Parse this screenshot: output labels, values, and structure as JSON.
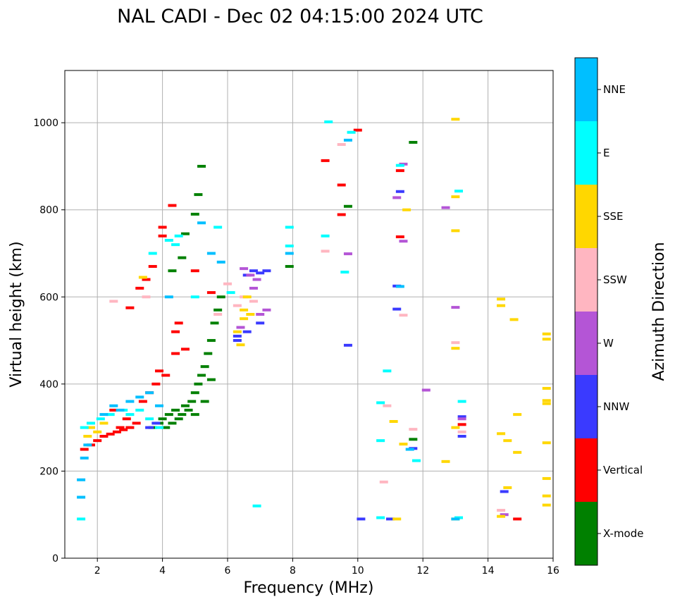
{
  "chart_data": {
    "type": "scatter",
    "title": "NAL CADI - Dec 02 04:15:00 2024 UTC",
    "xlabel": "Frequency (MHz)",
    "ylabel": "Virtual height (km)",
    "xlim": [
      1,
      16
    ],
    "ylim": [
      0,
      1120
    ],
    "xticks": [
      2,
      4,
      6,
      8,
      10,
      12,
      14,
      16
    ],
    "yticks": [
      0,
      200,
      400,
      600,
      800,
      1000
    ],
    "grid": true,
    "colorbar": {
      "label": "Azimuth Direction",
      "categories": [
        {
          "name": "X-mode",
          "color": "#008000"
        },
        {
          "name": "Vertical",
          "color": "#ff0000"
        },
        {
          "name": "NNW",
          "color": "#3a3aff"
        },
        {
          "name": "W",
          "color": "#b455d6"
        },
        {
          "name": "SSW",
          "color": "#ffb6c1"
        },
        {
          "name": "SSE",
          "color": "#ffd700"
        },
        {
          "name": "E",
          "color": "#00ffff"
        },
        {
          "name": "NNE",
          "color": "#00bfff"
        }
      ]
    },
    "series": [
      {
        "name": "X-mode",
        "points": [
          [
            4.1,
            300
          ],
          [
            4.3,
            310
          ],
          [
            4.5,
            320
          ],
          [
            4.6,
            330
          ],
          [
            4.8,
            340
          ],
          [
            4.9,
            360
          ],
          [
            5.0,
            380
          ],
          [
            5.1,
            400
          ],
          [
            5.2,
            420
          ],
          [
            4.2,
            330
          ],
          [
            4.4,
            340
          ],
          [
            4.7,
            350
          ],
          [
            5.3,
            440
          ],
          [
            5.4,
            470
          ],
          [
            5.5,
            500
          ],
          [
            5.6,
            540
          ],
          [
            5.7,
            570
          ],
          [
            5.8,
            600
          ],
          [
            4.3,
            660
          ],
          [
            4.6,
            690
          ],
          [
            4.7,
            745
          ],
          [
            5.0,
            790
          ],
          [
            5.1,
            835
          ],
          [
            5.2,
            900
          ],
          [
            3.7,
            300
          ],
          [
            3.9,
            310
          ],
          [
            4.0,
            320
          ],
          [
            5.0,
            330
          ],
          [
            5.3,
            360
          ],
          [
            11.7,
            955
          ],
          [
            9.7,
            808
          ],
          [
            11.7,
            273
          ],
          [
            7.9,
            670
          ],
          [
            5.5,
            410
          ]
        ]
      },
      {
        "name": "Vertical",
        "points": [
          [
            1.6,
            250
          ],
          [
            1.8,
            260
          ],
          [
            2.0,
            270
          ],
          [
            2.2,
            280
          ],
          [
            2.4,
            285
          ],
          [
            2.6,
            290
          ],
          [
            2.8,
            295
          ],
          [
            3.0,
            300
          ],
          [
            3.2,
            310
          ],
          [
            2.9,
            320
          ],
          [
            2.5,
            340
          ],
          [
            2.7,
            300
          ],
          [
            3.4,
            360
          ],
          [
            3.6,
            380
          ],
          [
            3.8,
            400
          ],
          [
            4.1,
            420
          ],
          [
            4.4,
            470
          ],
          [
            4.7,
            480
          ],
          [
            3.3,
            620
          ],
          [
            3.5,
            640
          ],
          [
            3.7,
            670
          ],
          [
            4.0,
            740
          ],
          [
            4.3,
            810
          ],
          [
            4.0,
            760
          ],
          [
            3.0,
            575
          ],
          [
            4.4,
            520
          ],
          [
            4.5,
            540
          ],
          [
            5.0,
            660
          ],
          [
            9.0,
            913
          ],
          [
            9.5,
            857
          ],
          [
            10.0,
            983
          ],
          [
            11.3,
            890
          ],
          [
            9.5,
            789
          ],
          [
            13.2,
            307
          ],
          [
            14.9,
            90
          ],
          [
            11.3,
            738
          ],
          [
            5.5,
            610
          ],
          [
            3.9,
            430
          ]
        ]
      },
      {
        "name": "NNW",
        "points": [
          [
            6.6,
            650
          ],
          [
            6.8,
            660
          ],
          [
            7.0,
            655
          ],
          [
            7.2,
            660
          ],
          [
            6.3,
            500
          ],
          [
            6.6,
            520
          ],
          [
            7.0,
            540
          ],
          [
            9.7,
            489
          ],
          [
            11.3,
            842
          ],
          [
            11.2,
            625
          ],
          [
            11.2,
            572
          ],
          [
            13.2,
            325
          ],
          [
            13.2,
            280
          ],
          [
            10.1,
            90
          ],
          [
            11.0,
            90
          ],
          [
            11.7,
            252
          ],
          [
            14.5,
            153
          ],
          [
            6.3,
            510
          ],
          [
            3.6,
            300
          ],
          [
            3.8,
            310
          ]
        ]
      },
      {
        "name": "W",
        "points": [
          [
            6.5,
            665
          ],
          [
            6.7,
            650
          ],
          [
            7.0,
            560
          ],
          [
            7.2,
            570
          ],
          [
            6.4,
            530
          ],
          [
            6.8,
            620
          ],
          [
            11.2,
            828
          ],
          [
            11.4,
            905
          ],
          [
            11.4,
            728
          ],
          [
            12.7,
            805
          ],
          [
            13.0,
            576
          ],
          [
            14.5,
            100
          ],
          [
            12.1,
            386
          ],
          [
            9.7,
            699
          ],
          [
            13.2,
            320
          ],
          [
            6.9,
            640
          ]
        ]
      },
      {
        "name": "SSW",
        "points": [
          [
            6.3,
            580
          ],
          [
            6.5,
            600
          ],
          [
            6.8,
            590
          ],
          [
            9.5,
            950
          ],
          [
            9.0,
            705
          ],
          [
            10.8,
            175
          ],
          [
            10.9,
            350
          ],
          [
            11.7,
            296
          ],
          [
            13.0,
            495
          ],
          [
            14.4,
            110
          ],
          [
            11.4,
            558
          ],
          [
            13.2,
            290
          ],
          [
            3.5,
            600
          ],
          [
            5.7,
            560
          ],
          [
            6.0,
            630
          ],
          [
            2.5,
            590
          ]
        ]
      },
      {
        "name": "SSE",
        "points": [
          [
            6.5,
            570
          ],
          [
            6.5,
            550
          ],
          [
            6.7,
            560
          ],
          [
            6.4,
            490
          ],
          [
            6.3,
            520
          ],
          [
            6.6,
            600
          ],
          [
            11.5,
            800
          ],
          [
            13.0,
            1008
          ],
          [
            13.0,
            830
          ],
          [
            13.0,
            752
          ],
          [
            14.4,
            595
          ],
          [
            14.4,
            580
          ],
          [
            14.8,
            548
          ],
          [
            15.8,
            515
          ],
          [
            15.8,
            503
          ],
          [
            15.8,
            390
          ],
          [
            15.8,
            362
          ],
          [
            15.8,
            355
          ],
          [
            14.9,
            330
          ],
          [
            13.0,
            482
          ],
          [
            13.0,
            300
          ],
          [
            11.1,
            314
          ],
          [
            11.4,
            262
          ],
          [
            12.7,
            222
          ],
          [
            14.4,
            286
          ],
          [
            14.6,
            270
          ],
          [
            14.9,
            243
          ],
          [
            15.8,
            265
          ],
          [
            15.8,
            183
          ],
          [
            14.6,
            162
          ],
          [
            15.8,
            143
          ],
          [
            15.8,
            122
          ],
          [
            14.4,
            96
          ],
          [
            13.0,
            90
          ],
          [
            11.2,
            90
          ],
          [
            1.7,
            280
          ],
          [
            1.8,
            300
          ],
          [
            2.0,
            290
          ],
          [
            3.4,
            645
          ],
          [
            2.2,
            310
          ]
        ]
      },
      {
        "name": "E",
        "points": [
          [
            1.5,
            90
          ],
          [
            1.6,
            300
          ],
          [
            1.8,
            310
          ],
          [
            2.1,
            320
          ],
          [
            2.4,
            330
          ],
          [
            2.8,
            340
          ],
          [
            3.0,
            330
          ],
          [
            3.3,
            340
          ],
          [
            3.6,
            320
          ],
          [
            3.9,
            300
          ],
          [
            9.1,
            1002
          ],
          [
            9.8,
            978
          ],
          [
            11.3,
            902
          ],
          [
            13.1,
            843
          ],
          [
            9.0,
            740
          ],
          [
            7.9,
            717
          ],
          [
            7.9,
            760
          ],
          [
            9.6,
            657
          ],
          [
            6.1,
            610
          ],
          [
            10.9,
            430
          ],
          [
            13.2,
            360
          ],
          [
            10.7,
            357
          ],
          [
            10.7,
            270
          ],
          [
            11.8,
            224
          ],
          [
            6.9,
            120
          ],
          [
            10.7,
            93
          ],
          [
            13.1,
            93
          ],
          [
            4.2,
            730
          ],
          [
            4.5,
            740
          ],
          [
            3.7,
            700
          ],
          [
            4.4,
            720
          ],
          [
            5.7,
            760
          ],
          [
            5.0,
            600
          ]
        ]
      },
      {
        "name": "NNE",
        "points": [
          [
            1.5,
            180
          ],
          [
            1.6,
            230
          ],
          [
            1.7,
            260
          ],
          [
            2.2,
            330
          ],
          [
            2.5,
            350
          ],
          [
            2.7,
            340
          ],
          [
            3.0,
            360
          ],
          [
            3.3,
            370
          ],
          [
            3.6,
            380
          ],
          [
            3.9,
            350
          ],
          [
            4.2,
            600
          ],
          [
            5.2,
            770
          ],
          [
            9.7,
            960
          ],
          [
            11.3,
            624
          ],
          [
            7.9,
            700
          ],
          [
            11.6,
            250
          ],
          [
            13.0,
            90
          ],
          [
            1.5,
            140
          ],
          [
            5.5,
            700
          ],
          [
            5.8,
            680
          ]
        ]
      }
    ]
  }
}
